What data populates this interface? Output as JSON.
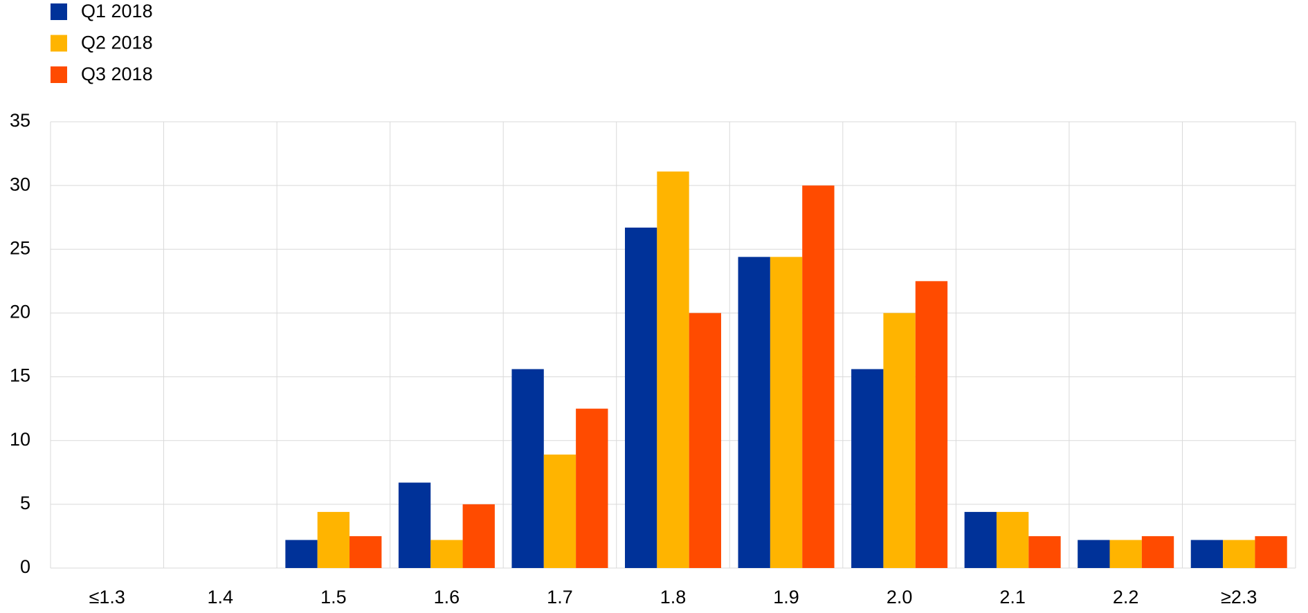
{
  "chart_data": {
    "type": "bar",
    "categories": [
      "≤1.3",
      "1.4",
      "1.5",
      "1.6",
      "1.7",
      "1.8",
      "1.9",
      "2.0",
      "2.1",
      "2.2",
      "≥2.3"
    ],
    "series": [
      {
        "name": "Q1 2018",
        "color": "#003299",
        "values": [
          0,
          0,
          2.2,
          6.7,
          15.6,
          26.7,
          24.4,
          15.6,
          4.4,
          2.2,
          2.2
        ]
      },
      {
        "name": "Q2 2018",
        "color": "#ffb400",
        "values": [
          0,
          0,
          4.4,
          2.2,
          8.9,
          31.1,
          24.4,
          20.0,
          4.4,
          2.2,
          2.2
        ]
      },
      {
        "name": "Q3 2018",
        "color": "#ff4b00",
        "values": [
          0,
          0,
          2.5,
          5.0,
          12.5,
          20.0,
          30.0,
          22.5,
          2.5,
          2.5,
          2.5
        ]
      }
    ],
    "ylim": [
      0,
      35
    ],
    "yticks": [
      0,
      5,
      10,
      15,
      20,
      25,
      30,
      35
    ],
    "grid": true,
    "legend": "top-left"
  }
}
